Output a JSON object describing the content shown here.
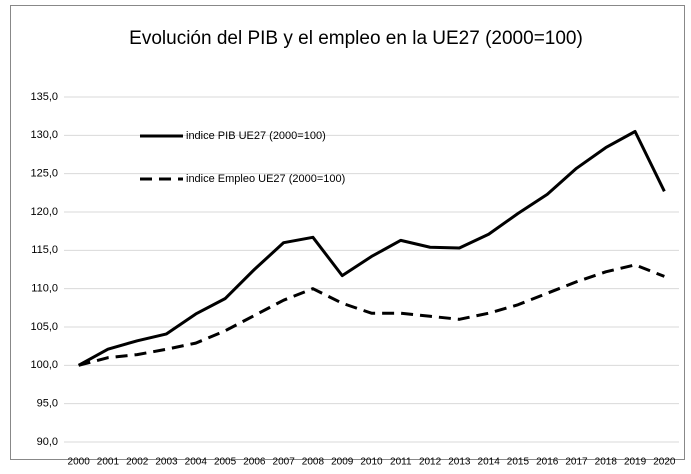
{
  "chart_data": {
    "type": "line",
    "title": "Evolución del PIB y el empleo en la UE27 (2000=100)",
    "categories": [
      "2000",
      "2001",
      "2002",
      "2003",
      "2004",
      "2005",
      "2006",
      "2007",
      "2008",
      "2009",
      "2010",
      "2011",
      "2012",
      "2013",
      "2014",
      "2015",
      "2016",
      "2017",
      "2018",
      "2019",
      "2020"
    ],
    "series": [
      {
        "name": "indice PIB UE27 (2000=100)",
        "color": "#000000",
        "style": "solid",
        "values": [
          100,
          102.1,
          103.2,
          104.1,
          106.7,
          108.7,
          112.5,
          116.0,
          116.7,
          111.7,
          114.2,
          116.3,
          115.4,
          115.3,
          117.1,
          119.8,
          122.3,
          125.7,
          128.4,
          130.5,
          122.7
        ]
      },
      {
        "name": "indice Empleo UE27 (2000=100)",
        "color": "#000000",
        "style": "dashed",
        "values": [
          100,
          101.0,
          101.4,
          102.1,
          102.9,
          104.5,
          106.5,
          108.5,
          110.0,
          108.1,
          106.8,
          106.8,
          106.4,
          106.0,
          106.8,
          107.9,
          109.4,
          110.9,
          112.2,
          113.1,
          111.6
        ]
      }
    ],
    "ylim": [
      90,
      135
    ],
    "yticks": [
      {
        "value": 90,
        "label": "90,0"
      },
      {
        "value": 95,
        "label": "95,0"
      },
      {
        "value": 100,
        "label": "100,0"
      },
      {
        "value": 105,
        "label": "105,0"
      },
      {
        "value": 110,
        "label": "110,0"
      },
      {
        "value": 115,
        "label": "115,0"
      },
      {
        "value": 120,
        "label": "120,0"
      },
      {
        "value": 125,
        "label": "125,0"
      },
      {
        "value": 130,
        "label": "130,0"
      },
      {
        "value": 135,
        "label": "135,0"
      }
    ],
    "grid": true
  }
}
